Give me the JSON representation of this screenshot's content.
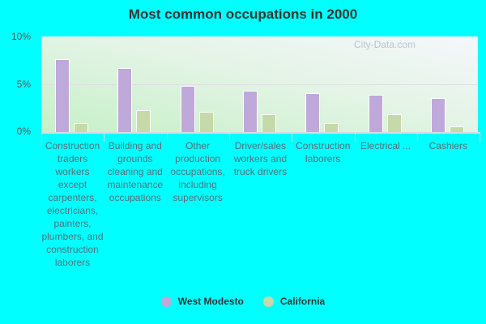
{
  "title": "Most common occupations in 2000",
  "watermark": "City-Data.com",
  "colors": {
    "west_modesto": "#bfa8da",
    "california": "#c6d9a8",
    "background": "#00ffff"
  },
  "legend": [
    {
      "label": "West Modesto",
      "color": "#bfa8da"
    },
    {
      "label": "California",
      "color": "#c6d9a8"
    }
  ],
  "y_ticks": [
    "10%",
    "5%",
    "0%"
  ],
  "chart_data": {
    "type": "bar",
    "title": "Most common occupations in 2000",
    "xlabel": "",
    "ylabel": "",
    "ylim": [
      0,
      10
    ],
    "y_unit": "%",
    "grid": true,
    "legend_position": "bottom",
    "categories": [
      "Construction traders workers except carpenters, electricians, painters, plumbers, and construction laborers",
      "Building and grounds cleaning and maintenance occupations",
      "Other production occupations, including supervisors",
      "Driver/sales workers and truck drivers",
      "Construction laborers",
      "Electrical ...",
      "Cashiers"
    ],
    "series": [
      {
        "name": "West Modesto",
        "values": [
          7.6,
          6.7,
          4.8,
          4.3,
          4.1,
          3.9,
          3.6
        ]
      },
      {
        "name": "California",
        "values": [
          0.9,
          2.3,
          2.1,
          1.9,
          0.9,
          1.9,
          0.6
        ]
      }
    ]
  }
}
